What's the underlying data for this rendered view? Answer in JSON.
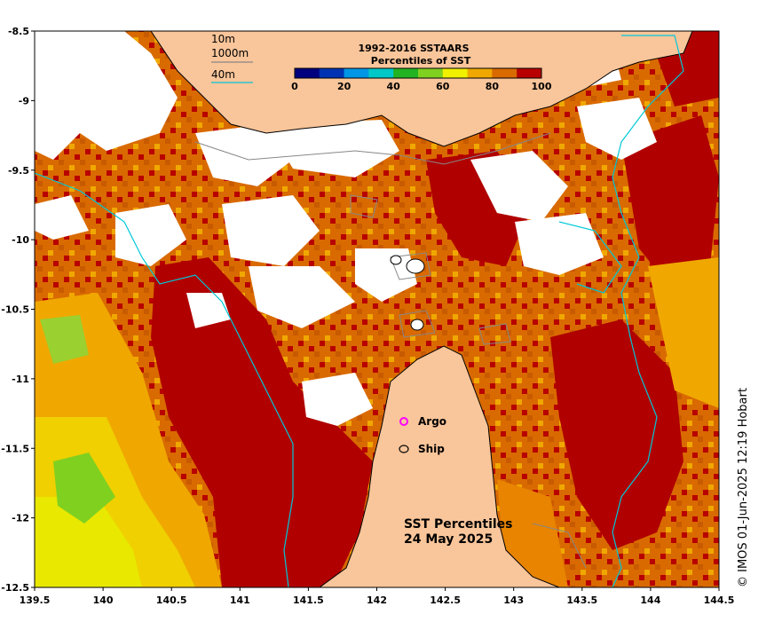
{
  "map": {
    "x_ticks": [
      "139.5",
      "140",
      "140.5",
      "141",
      "141.5",
      "142",
      "142.5",
      "143",
      "143.5",
      "144",
      "144.5"
    ],
    "y_ticks": [
      "-8.5",
      "-9",
      "-9.5",
      "-10",
      "-10.5",
      "-11",
      "-11.5",
      "-12",
      "-12.5"
    ],
    "lon_range": [
      139.5,
      144.5
    ],
    "lat_range": [
      -12.5,
      -8.5
    ]
  },
  "colorbar": {
    "title_line1": "1992-2016 SSTAARS",
    "title_line2": "Percentiles of SST",
    "tick_labels": [
      "0",
      "20",
      "40",
      "60",
      "80",
      "100"
    ],
    "colors": [
      "#00007f",
      "#0033b3",
      "#0096e6",
      "#00c8c8",
      "#22b322",
      "#80d020",
      "#f0f000",
      "#f0a800",
      "#d96a00",
      "#b80000"
    ]
  },
  "contour_legend": {
    "item1": "10m",
    "item2": "1000m",
    "item3": "40m",
    "color_10m": "#888888",
    "color_40m": "#00c8d8"
  },
  "marker_legend": {
    "argo": "Argo",
    "ship": "Ship",
    "argo_color": "#ff00ff",
    "ship_color": "#000000"
  },
  "title": {
    "line1": "SST Percentiles",
    "line2": "24 May 2025"
  },
  "copyright": "© IMOS 01-Jun-2025 12:19 Hobart"
}
